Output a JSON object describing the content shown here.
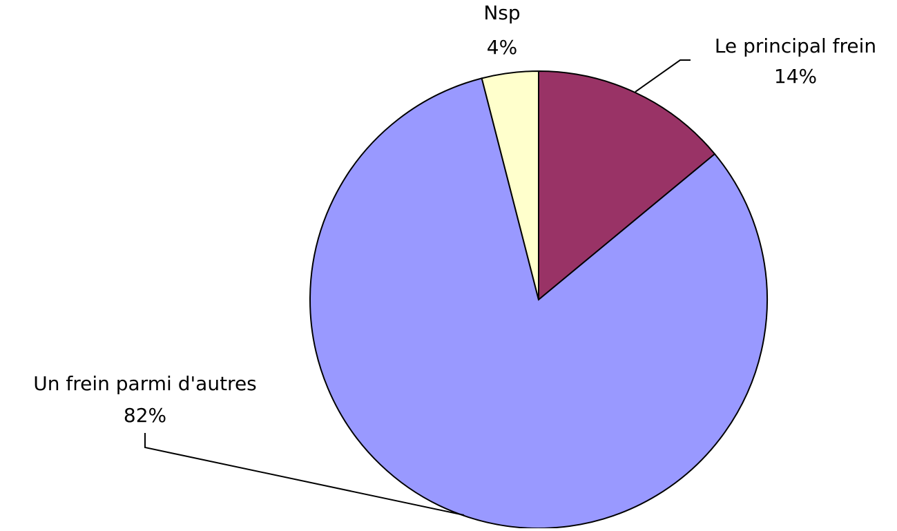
{
  "chart_data": {
    "type": "pie",
    "categories": [
      "Le principal frein",
      "Un frein parmi d'autres",
      "Nsp"
    ],
    "values": [
      14,
      82,
      4
    ],
    "value_labels": [
      "14%",
      "82%",
      "4%"
    ],
    "colors": [
      "#993366",
      "#9999ff",
      "#ffffcc"
    ]
  }
}
